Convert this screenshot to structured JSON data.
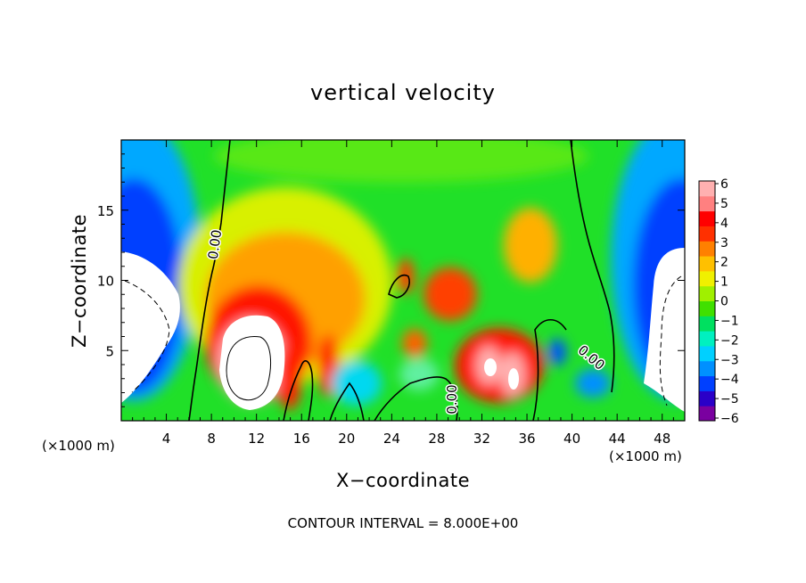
{
  "chart_data": {
    "type": "heatmap",
    "title": "vertical velocity",
    "xlabel": "X−coordinate",
    "ylabel": "Z−coordinate",
    "x_unit": "(×1000 m)",
    "y_unit": "(×1000 m)",
    "xlim": [
      0,
      50
    ],
    "ylim": [
      0,
      20
    ],
    "x_ticks": [
      4,
      8,
      12,
      16,
      20,
      24,
      28,
      32,
      36,
      40,
      44,
      48
    ],
    "y_ticks": [
      5,
      10,
      15
    ],
    "colorbar": {
      "min": -6,
      "max": 6,
      "ticks": [
        "6",
        "5",
        "4",
        "3",
        "2",
        "1",
        "0",
        "−1",
        "−2",
        "−3",
        "−4",
        "−5",
        "−6"
      ],
      "colors": [
        "#7a00a0",
        "#2a00c8",
        "#0040ff",
        "#0090ff",
        "#00d0ff",
        "#00f0c0",
        "#00e060",
        "#40e000",
        "#a0f000",
        "#f0f000",
        "#ffc000",
        "#ff8000",
        "#ff3000",
        "#ff0000",
        "#ff8080",
        "#ffb0b0"
      ]
    },
    "contour_label": "0.00",
    "footer": "CONTOUR INTERVAL = 8.000E+00",
    "features": [
      {
        "x": 2.5,
        "z": 8,
        "value": -8
      },
      {
        "x": 10.5,
        "z": 5,
        "value": 8
      },
      {
        "x": 13,
        "z": 9,
        "value": 3
      },
      {
        "x": 15,
        "z": 4,
        "value": 5
      },
      {
        "x": 18.5,
        "z": 4,
        "value": 5
      },
      {
        "x": 30.5,
        "z": 7,
        "value": 4
      },
      {
        "x": 32.5,
        "z": 4,
        "value": 7
      },
      {
        "x": 34.5,
        "z": 3.5,
        "value": 7
      },
      {
        "x": 35.5,
        "z": 12,
        "value": 3
      },
      {
        "x": 47.5,
        "z": 8,
        "value": -8
      },
      {
        "x": 2,
        "z": 15,
        "value": -4
      },
      {
        "x": 48,
        "z": 15,
        "value": -4
      },
      {
        "x": 40,
        "z": 3.5,
        "value": -3
      },
      {
        "x": 21,
        "z": 3.5,
        "value": -2
      }
    ]
  }
}
